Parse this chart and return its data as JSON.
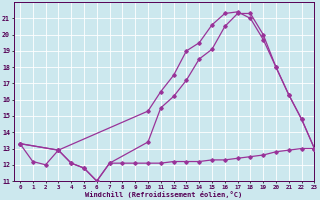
{
  "xlabel": "Windchill (Refroidissement éolien,°C)",
  "background_color": "#cce8ee",
  "grid_color": "#aadddd",
  "line_color": "#993399",
  "line1_x": [
    0,
    1,
    2,
    3,
    4,
    5,
    6,
    7,
    8,
    9,
    10,
    11,
    12,
    13,
    14,
    15,
    16,
    17,
    18,
    19,
    20,
    21,
    22,
    23
  ],
  "line1_y": [
    13.3,
    12.2,
    12.0,
    12.9,
    12.1,
    11.8,
    11.0,
    12.1,
    12.1,
    12.1,
    12.1,
    12.1,
    12.2,
    12.2,
    12.2,
    12.3,
    12.3,
    12.4,
    12.5,
    12.6,
    12.8,
    12.9,
    13.0,
    13.0
  ],
  "line2_x": [
    0,
    3,
    4,
    5,
    6,
    7,
    10,
    11,
    12,
    13,
    14,
    15,
    16,
    17,
    18,
    19,
    20,
    21,
    22,
    23
  ],
  "line2_y": [
    13.3,
    12.9,
    12.1,
    11.8,
    11.0,
    12.1,
    13.4,
    15.5,
    16.2,
    17.2,
    18.5,
    19.1,
    20.5,
    21.3,
    21.3,
    20.0,
    18.0,
    16.3,
    14.8,
    13.0
  ],
  "line3_x": [
    0,
    3,
    10,
    11,
    12,
    13,
    14,
    15,
    16,
    17,
    18,
    19,
    20,
    21,
    22,
    23
  ],
  "line3_y": [
    13.3,
    12.9,
    15.3,
    16.5,
    17.5,
    19.0,
    19.5,
    20.6,
    21.3,
    21.4,
    21.0,
    19.7,
    18.0,
    16.3,
    14.8,
    13.0
  ],
  "ylim": [
    11,
    22
  ],
  "xlim": [
    -0.5,
    23
  ],
  "yticks": [
    11,
    12,
    13,
    14,
    15,
    16,
    17,
    18,
    19,
    20,
    21
  ],
  "xticks": [
    0,
    1,
    2,
    3,
    4,
    5,
    6,
    7,
    8,
    9,
    10,
    11,
    12,
    13,
    14,
    15,
    16,
    17,
    18,
    19,
    20,
    21,
    22,
    23
  ],
  "ylabel_color": "#550055",
  "tick_color": "#550055",
  "spine_color": "#550055",
  "marker": "D",
  "markersize": 1.8,
  "linewidth": 0.9,
  "xlabel_fontsize": 5.0,
  "xtick_fontsize": 4.2,
  "ytick_fontsize": 4.8
}
